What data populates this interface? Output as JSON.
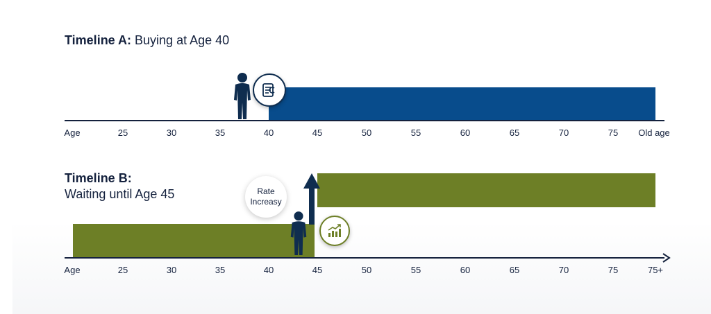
{
  "timeline_a": {
    "title_bold": "Timeline A:",
    "title_rest": " Buying at Age 40",
    "axis_ticks": [
      "Age",
      "25",
      "30",
      "35",
      "40",
      "45",
      "50",
      "55",
      "60",
      "65",
      "70",
      "75",
      "Old age"
    ],
    "coverage": {
      "start_age": 40,
      "end_label": "Old age"
    },
    "icons": [
      "person-icon",
      "policy-document-icon"
    ]
  },
  "timeline_b": {
    "title_bold": "Timeline B:",
    "title_rest": "Waiting until Age 45",
    "axis_ticks": [
      "Age",
      "25",
      "30",
      "35",
      "40",
      "45",
      "50",
      "55",
      "60",
      "65",
      "70",
      "75",
      "75+"
    ],
    "lower_band": {
      "start_label": "Age",
      "end_age": 45
    },
    "upper_band": {
      "start_age": 45,
      "end_label": "75+"
    },
    "rate_label_line1": "Rate",
    "rate_label_line2": "Increasy",
    "icons": [
      "person-icon",
      "up-arrow-icon",
      "growth-chart-icon"
    ]
  },
  "colors": {
    "timeline_a_bar": "#084c8c",
    "timeline_b_bar": "#6d7f26",
    "text": "#14213d"
  }
}
